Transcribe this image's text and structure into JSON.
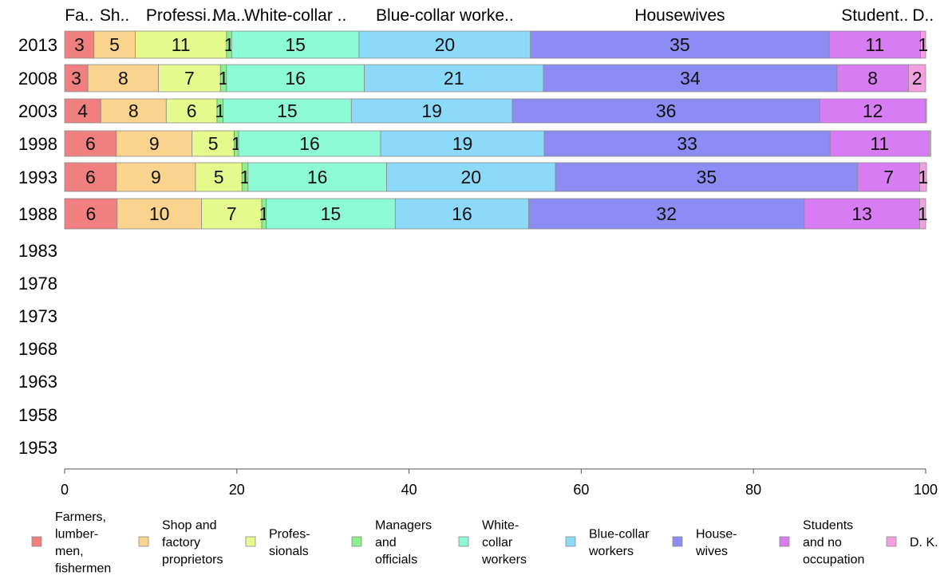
{
  "chart_data": {
    "type": "bar",
    "orientation": "horizontal",
    "stacked": true,
    "xlim": [
      0,
      100
    ],
    "x_ticks": [
      0,
      20,
      40,
      60,
      80,
      100
    ],
    "grid": false,
    "legend_position": "bottom",
    "categories": [
      "2013",
      "2008",
      "2003",
      "1998",
      "1993",
      "1988",
      "1983",
      "1978",
      "1973",
      "1968",
      "1963",
      "1958",
      "1953"
    ],
    "top_labels": [
      "Fa..",
      "Sh..",
      "Professi..",
      "Ma..",
      "White-collar ..",
      "Blue-collar worke..",
      "Housewives",
      "Student..",
      "D.."
    ],
    "series": [
      {
        "name": "Farmers, lumber-men, fishermen",
        "legend_lines": [
          "Farmers,",
          "lumber-",
          "men,",
          "fishermen"
        ],
        "color": "#f08080",
        "values": [
          3.4,
          2.7,
          4.2,
          6,
          6,
          6.1,
          null,
          null,
          null,
          null,
          null,
          null,
          null
        ],
        "labels": [
          "3",
          "3",
          "4",
          "6",
          "6",
          "6",
          "",
          "",
          "",
          "",
          "",
          "",
          ""
        ]
      },
      {
        "name": "Shop and factory proprietors",
        "legend_lines": [
          "Shop and",
          "factory",
          "proprietors"
        ],
        "color": "#fad48c",
        "values": [
          4.8,
          8.2,
          7.6,
          8.8,
          9.2,
          9.8,
          null,
          null,
          null,
          null,
          null,
          null,
          null
        ],
        "labels": [
          "5",
          "8",
          "8",
          "9",
          "9",
          "10",
          "",
          "",
          "",
          "",
          "",
          "",
          ""
        ]
      },
      {
        "name": "Profes-sionals",
        "legend_lines": [
          "Profes-",
          "sionals"
        ],
        "color": "#e4fa8c",
        "values": [
          10.6,
          7.2,
          5.9,
          4.9,
          5.4,
          7,
          null,
          null,
          null,
          null,
          null,
          null,
          null
        ],
        "labels": [
          "11",
          "7",
          "6",
          "5",
          "5",
          "7",
          "",
          "",
          "",
          "",
          "",
          "",
          ""
        ]
      },
      {
        "name": "Managers and officials",
        "legend_lines": [
          "Managers",
          "and",
          "officials"
        ],
        "color": "#8cf08c",
        "values": [
          0.6,
          0.7,
          0.7,
          0.5,
          0.7,
          0.5,
          null,
          null,
          null,
          null,
          null,
          null,
          null
        ],
        "labels": [
          "1",
          "1",
          "1",
          "1",
          "1",
          "1",
          "",
          "",
          "",
          "",
          "",
          "",
          ""
        ]
      },
      {
        "name": "White-collar workers",
        "legend_lines": [
          "White-",
          "collar",
          "workers"
        ],
        "color": "#8cfad4",
        "values": [
          14.8,
          16,
          14.9,
          16.5,
          16.1,
          15,
          null,
          null,
          null,
          null,
          null,
          null,
          null
        ],
        "labels": [
          "15",
          "16",
          "15",
          "16",
          "16",
          "15",
          "",
          "",
          "",
          "",
          "",
          "",
          ""
        ]
      },
      {
        "name": "Blue-collar workers",
        "legend_lines": [
          "Blue-collar",
          "workers"
        ],
        "color": "#8cdafa",
        "values": [
          19.9,
          20.8,
          18.7,
          19,
          19.6,
          15.5,
          null,
          null,
          null,
          null,
          null,
          null,
          null
        ],
        "labels": [
          "20",
          "21",
          "19",
          "19",
          "20",
          "16",
          "",
          "",
          "",
          "",
          "",
          "",
          ""
        ]
      },
      {
        "name": "House-wives",
        "legend_lines": [
          "House-",
          "wives"
        ],
        "color": "#8c8cf4",
        "values": [
          34.7,
          34.1,
          35.7,
          33.2,
          35.1,
          32,
          null,
          null,
          null,
          null,
          null,
          null,
          null
        ],
        "labels": [
          "35",
          "34",
          "36",
          "33",
          "35",
          "32",
          "",
          "",
          "",
          "",
          "",
          "",
          ""
        ]
      },
      {
        "name": "Students and no occupation",
        "legend_lines": [
          "Students",
          "and no",
          "occupation"
        ],
        "color": "#d87cf4",
        "values": [
          10.6,
          8.3,
          12.3,
          11.5,
          7.2,
          13.4,
          null,
          null,
          null,
          null,
          null,
          null,
          null
        ],
        "labels": [
          "11",
          "8",
          "12",
          "11",
          "7",
          "13",
          "",
          "",
          "",
          "",
          "",
          "",
          ""
        ]
      },
      {
        "name": "D. K.",
        "legend_lines": [
          "D. K."
        ],
        "color": "#f4a0e0",
        "values": [
          0.6,
          2.0,
          0.1,
          0.2,
          0.8,
          0.7,
          null,
          null,
          null,
          null,
          null,
          null,
          null
        ],
        "labels": [
          "1",
          "2",
          "",
          "",
          "1",
          "1",
          "",
          "",
          "",
          "",
          "",
          "",
          ""
        ]
      }
    ]
  }
}
